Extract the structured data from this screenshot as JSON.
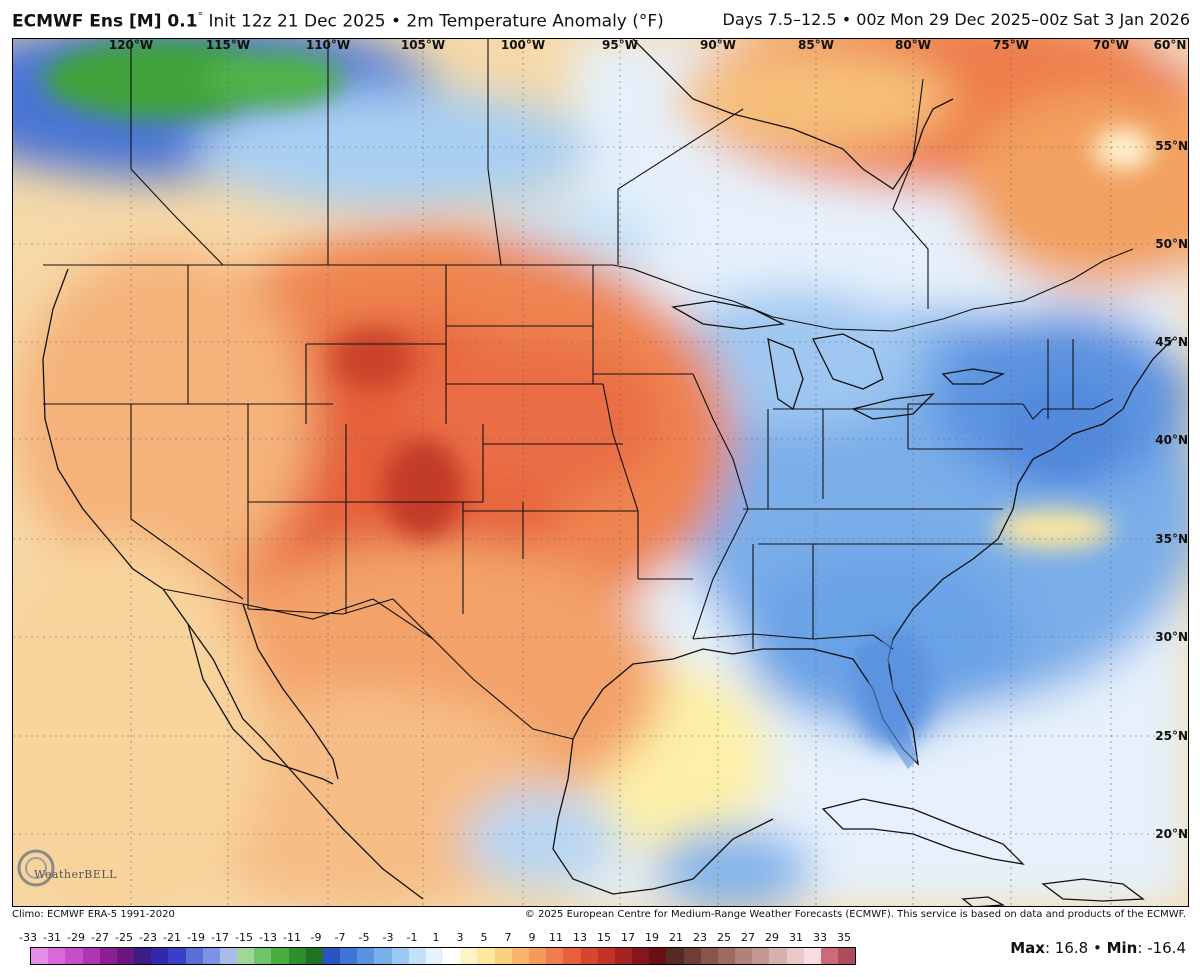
{
  "header": {
    "model": "ECMWF Ens [M] 0.1",
    "degree": "°",
    "init": "Init 12z 21 Dec 2025",
    "bullet": "•",
    "product": "2m Temperature Anomaly (°F)",
    "valid": "Days 7.5–12.5 • 00z Mon 29 Dec 2025–00z Sat 3 Jan 2026"
  },
  "map": {
    "longitude_labels": [
      "120°W",
      "115°W",
      "110°W",
      "105°W",
      "100°W",
      "95°W",
      "90°W",
      "85°W",
      "80°W",
      "75°W",
      "70°W",
      "60°N"
    ],
    "latitude_labels": [
      "55°N",
      "50°N",
      "45°N",
      "40°N",
      "35°N",
      "30°N",
      "25°N",
      "20°N"
    ]
  },
  "logo": {
    "name": "WeatherBELL"
  },
  "footer": {
    "climo": "Climo: ECMWF ERA-5 1991-2020",
    "copyright": "© 2025 European Centre for Medium-Range Weather Forecasts (ECMWF). This service is based on data and products of the ECMWF."
  },
  "colorbar": {
    "ticks": [
      "-33",
      "-31",
      "-29",
      "-27",
      "-25",
      "-23",
      "-21",
      "-19",
      "-17",
      "-15",
      "-13",
      "-11",
      "-9",
      "-7",
      "-5",
      "-3",
      "-1",
      "1",
      "3",
      "5",
      "7",
      "9",
      "11",
      "13",
      "15",
      "17",
      "19",
      "21",
      "23",
      "25",
      "27",
      "29",
      "31",
      "33",
      "35"
    ],
    "colors": [
      "#e58ee6",
      "#d86ad9",
      "#c84ec8",
      "#b035b4",
      "#8a1f96",
      "#6b177d",
      "#3c1c86",
      "#3329a6",
      "#3a3fc8",
      "#5a6ed8",
      "#7d93e1",
      "#a8bbe9",
      "#9fd79b",
      "#6fc56b",
      "#48ac3e",
      "#2e8f2a",
      "#1f7222",
      "#2a53c4",
      "#3d74d8",
      "#5a92e2",
      "#7ab0ea",
      "#9bc8f1",
      "#c2e0f7",
      "#e6f3fb",
      "#ffffff",
      "#fff3c9",
      "#fde7a2",
      "#fbd17f",
      "#f8b66d",
      "#f49a5c",
      "#ee7d4b",
      "#e5603b",
      "#d5462f",
      "#c03326",
      "#a52220",
      "#86161b",
      "#6a1014",
      "#542a24",
      "#6e3d36",
      "#86554c",
      "#9c6c62",
      "#b0827a",
      "#c39893",
      "#d6b0ac",
      "#e9c9c7",
      "#f5dde0",
      "#c96b78",
      "#b04b5c"
    ]
  },
  "stats": {
    "max_label": "Max",
    "max": "16.8",
    "sep": "•",
    "min_label": "Min",
    "min": "-16.4"
  }
}
